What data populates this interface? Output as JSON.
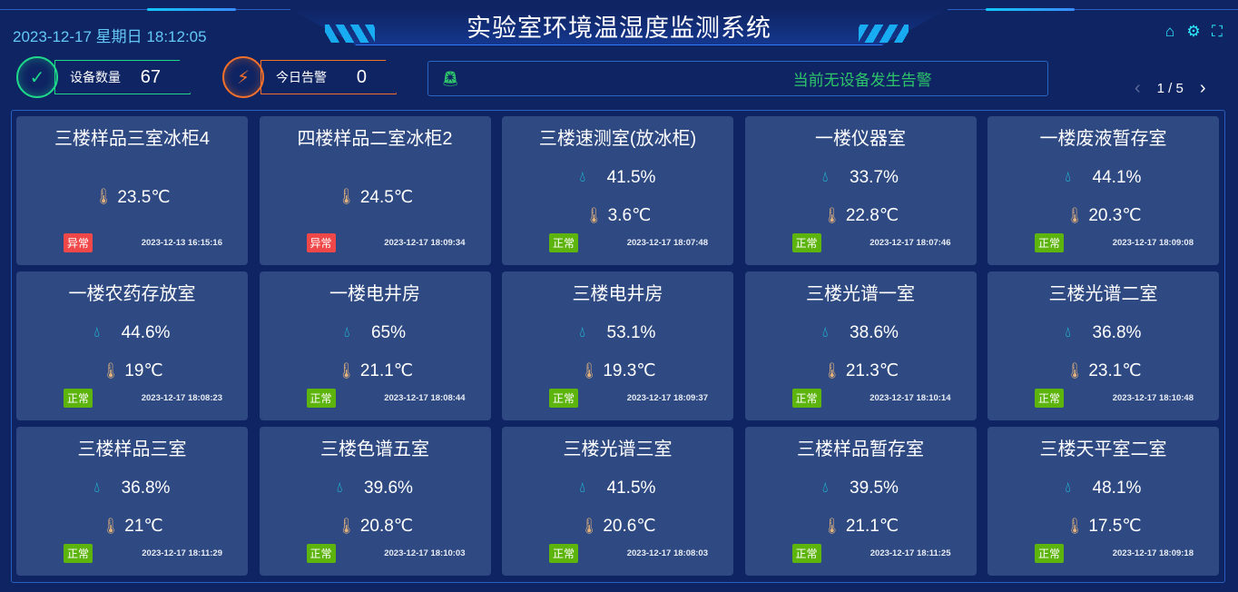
{
  "header": {
    "title": "实验室环境温湿度监测系统",
    "datetime": "2023-12-17 星期日 18:12:05",
    "icons": [
      "home-icon",
      "gear-icon",
      "fullscreen-icon"
    ]
  },
  "stats": {
    "devices": {
      "label": "设备数量",
      "value": "67",
      "color": "#1fd98a"
    },
    "alerts": {
      "label": "今日告警",
      "value": "0",
      "color": "#f2702a"
    }
  },
  "alert_bar": {
    "text": "当前无设备发生告警",
    "color": "#2ec46a"
  },
  "pager": {
    "text": "1 / 5"
  },
  "colors": {
    "normal": "#5db40c",
    "abnormal": "#f04848",
    "card": "#2f4a82",
    "background": "#0f2463"
  },
  "cards": [
    {
      "name": "三楼样品三室冰柜4",
      "humidity": null,
      "temperature": "23.5℃",
      "status": "异常",
      "time": "2023-12-13 16:15:16"
    },
    {
      "name": "四楼样品二室冰柜2",
      "humidity": null,
      "temperature": "24.5℃",
      "status": "异常",
      "time": "2023-12-17 18:09:34"
    },
    {
      "name": "三楼速测室(放冰柜)",
      "humidity": "41.5%",
      "temperature": "3.6℃",
      "status": "正常",
      "time": "2023-12-17 18:07:48"
    },
    {
      "name": "一楼仪器室",
      "humidity": "33.7%",
      "temperature": "22.8℃",
      "status": "正常",
      "time": "2023-12-17 18:07:46"
    },
    {
      "name": "一楼废液暂存室",
      "humidity": "44.1%",
      "temperature": "20.3℃",
      "status": "正常",
      "time": "2023-12-17 18:09:08"
    },
    {
      "name": "一楼农药存放室",
      "humidity": "44.6%",
      "temperature": "19℃",
      "status": "正常",
      "time": "2023-12-17 18:08:23"
    },
    {
      "name": "一楼电井房",
      "humidity": "65%",
      "temperature": "21.1℃",
      "status": "正常",
      "time": "2023-12-17 18:08:44"
    },
    {
      "name": "三楼电井房",
      "humidity": "53.1%",
      "temperature": "19.3℃",
      "status": "正常",
      "time": "2023-12-17 18:09:37"
    },
    {
      "name": "三楼光谱一室",
      "humidity": "38.6%",
      "temperature": "21.3℃",
      "status": "正常",
      "time": "2023-12-17 18:10:14"
    },
    {
      "name": "三楼光谱二室",
      "humidity": "36.8%",
      "temperature": "23.1℃",
      "status": "正常",
      "time": "2023-12-17 18:10:48"
    },
    {
      "name": "三楼样品三室",
      "humidity": "36.8%",
      "temperature": "21℃",
      "status": "正常",
      "time": "2023-12-17 18:11:29"
    },
    {
      "name": "三楼色谱五室",
      "humidity": "39.6%",
      "temperature": "20.8℃",
      "status": "正常",
      "time": "2023-12-17 18:10:03"
    },
    {
      "name": "三楼光谱三室",
      "humidity": "41.5%",
      "temperature": "20.6℃",
      "status": "正常",
      "time": "2023-12-17 18:08:03"
    },
    {
      "name": "三楼样品暂存室",
      "humidity": "39.5%",
      "temperature": "21.1℃",
      "status": "正常",
      "time": "2023-12-17 18:11:25"
    },
    {
      "name": "三楼天平室二室",
      "humidity": "48.1%",
      "temperature": "17.5℃",
      "status": "正常",
      "time": "2023-12-17 18:09:18"
    }
  ]
}
